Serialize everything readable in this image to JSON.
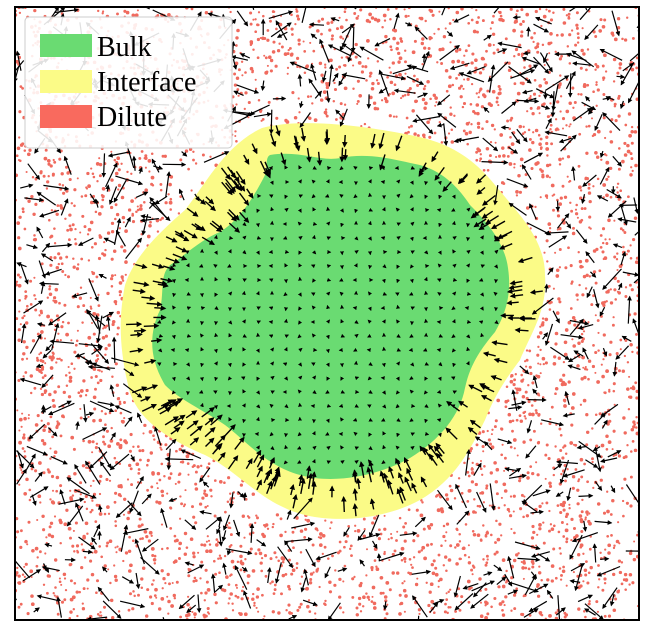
{
  "legend": {
    "items": [
      {
        "label": "Bulk",
        "color": "#6adb72"
      },
      {
        "label": "Interface",
        "color": "#fbfb87"
      },
      {
        "label": "Dilute",
        "color": "#f96a5e"
      }
    ]
  },
  "colors": {
    "bulk": "#6adb72",
    "interface": "#fbfb87",
    "dilute_particle": "#f06a5e",
    "arrow": "#000000",
    "frame": "#000000",
    "background": "#ffffff"
  }
}
